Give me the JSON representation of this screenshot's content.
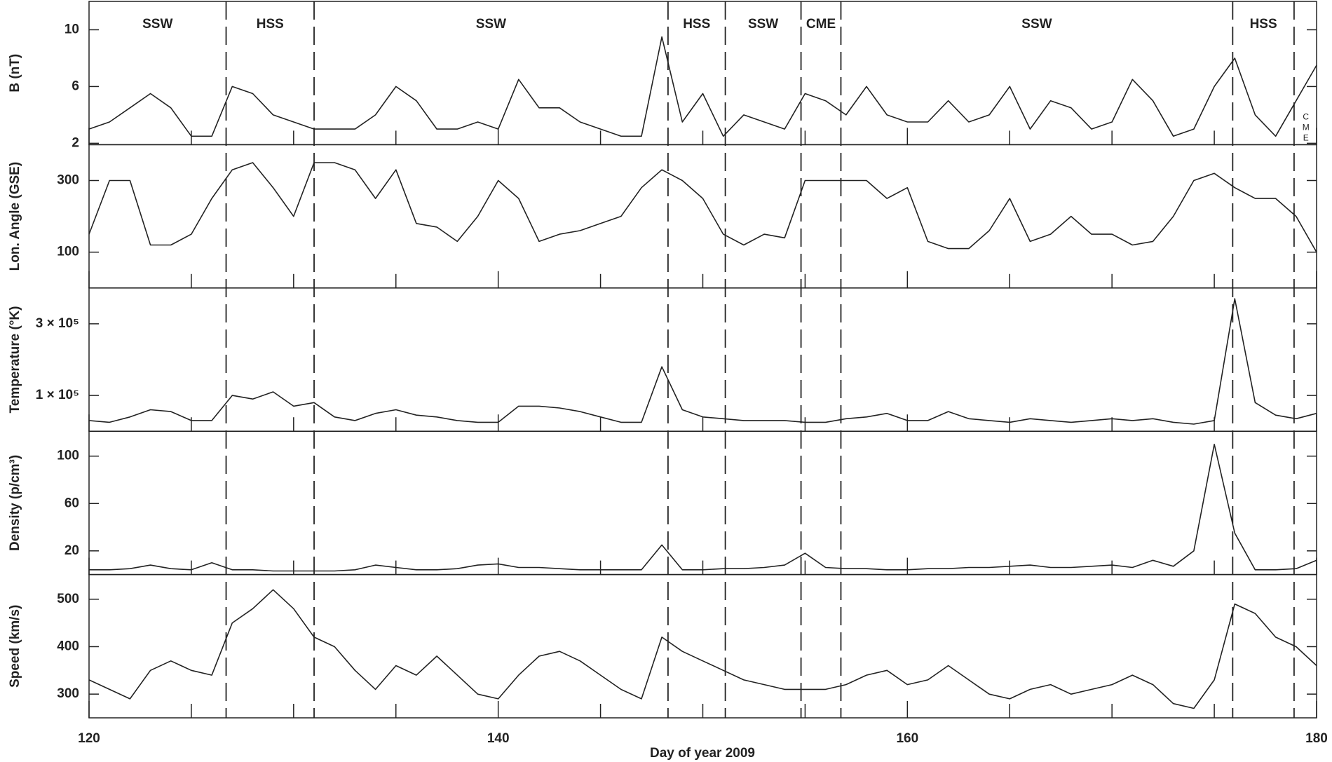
{
  "chart_data": {
    "type": "line",
    "color": "#222222",
    "xlabel": "Day of year 2009",
    "xlim": [
      120,
      180
    ],
    "xticks": [
      120,
      140,
      160,
      180
    ],
    "x_minor_ticks": [
      125,
      130,
      135,
      145,
      150,
      155,
      165,
      170,
      175
    ],
    "boundaries": [
      126.7,
      131,
      148.3,
      151.1,
      154.8,
      156.75,
      175.9,
      178.9
    ],
    "regions": [
      "SSW",
      "HSS",
      "SSW",
      "HSS",
      "SSW",
      "CME",
      "SSW",
      "HSS",
      "CME"
    ],
    "x": [
      120,
      121,
      122,
      123,
      124,
      125,
      126,
      127,
      128,
      129,
      130,
      131,
      132,
      133,
      134,
      135,
      136,
      137,
      138,
      139,
      140,
      141,
      142,
      143,
      144,
      145,
      146,
      147,
      148,
      149,
      150,
      151,
      152,
      153,
      154,
      155,
      156,
      157,
      158,
      159,
      160,
      161,
      162,
      163,
      164,
      165,
      166,
      167,
      168,
      169,
      170,
      171,
      172,
      173,
      174,
      175,
      176,
      177,
      178,
      179,
      180
    ],
    "series": [
      {
        "name": "B (nT)",
        "ylim": [
          1.9,
          12
        ],
        "yticks": [
          2,
          6,
          10
        ],
        "values": [
          3,
          3.5,
          4.5,
          5.5,
          4.5,
          2.5,
          2.5,
          6,
          5.5,
          4,
          3.5,
          3,
          3,
          3,
          4,
          6,
          5,
          3,
          3,
          3.5,
          3,
          6.5,
          4.5,
          4.5,
          3.5,
          3,
          2.5,
          2.5,
          9.5,
          3.5,
          5.5,
          2.5,
          4,
          3.5,
          3,
          5.5,
          5,
          4,
          6,
          4,
          3.5,
          3.5,
          5,
          3.5,
          4,
          6,
          3,
          5,
          4.5,
          3,
          3.5,
          6.5,
          5,
          2.5,
          3,
          6,
          8,
          4,
          2.5,
          5,
          7.5
        ]
      },
      {
        "name": "Lon. Angle (GSE)",
        "ylim": [
          0,
          400
        ],
        "yticks": [
          100,
          300
        ],
        "values": [
          150,
          300,
          300,
          120,
          120,
          150,
          250,
          330,
          350,
          280,
          200,
          350,
          350,
          330,
          250,
          330,
          180,
          170,
          130,
          200,
          300,
          250,
          130,
          150,
          160,
          180,
          200,
          280,
          330,
          300,
          250,
          150,
          120,
          150,
          140,
          300,
          300,
          300,
          300,
          250,
          280,
          130,
          110,
          110,
          160,
          250,
          130,
          150,
          200,
          150,
          150,
          120,
          130,
          200,
          300,
          320,
          280,
          250,
          250,
          200,
          100
        ]
      },
      {
        "name": "Temperature (°K)",
        "ylim": [
          0,
          400000
        ],
        "yticks": [
          {
            "value": 100000,
            "label": "1 × 10⁵"
          },
          {
            "value": 300000,
            "label": "3 × 10⁵"
          }
        ],
        "values": [
          30000,
          25000,
          40000,
          60000,
          55000,
          30000,
          30000,
          100000,
          90000,
          110000,
          70000,
          80000,
          40000,
          30000,
          50000,
          60000,
          45000,
          40000,
          30000,
          25000,
          25000,
          70000,
          70000,
          65000,
          55000,
          40000,
          25000,
          25000,
          180000,
          60000,
          40000,
          35000,
          30000,
          30000,
          30000,
          25000,
          25000,
          35000,
          40000,
          50000,
          30000,
          30000,
          55000,
          35000,
          30000,
          25000,
          35000,
          30000,
          25000,
          30000,
          35000,
          30000,
          35000,
          25000,
          20000,
          30000,
          370000,
          80000,
          45000,
          35000,
          50000
        ]
      },
      {
        "name": "Density (p/cm³)",
        "ylim": [
          0,
          121
        ],
        "yticks": [
          20,
          60,
          100
        ],
        "values": [
          4,
          4,
          5,
          8,
          5,
          4,
          10,
          4,
          4,
          3,
          3,
          3,
          3,
          4,
          8,
          6,
          4,
          4,
          5,
          8,
          9,
          6,
          6,
          5,
          4,
          4,
          4,
          4,
          25,
          4,
          4,
          5,
          5,
          6,
          8,
          18,
          6,
          5,
          5,
          4,
          4,
          5,
          5,
          6,
          6,
          7,
          8,
          6,
          6,
          7,
          8,
          6,
          12,
          7,
          20,
          110,
          35,
          4,
          4,
          5,
          12
        ]
      },
      {
        "name": "Speed (km/s)",
        "ylim": [
          250,
          552
        ],
        "yticks": [
          300,
          400,
          500
        ],
        "values": [
          330,
          310,
          290,
          350,
          370,
          350,
          340,
          450,
          480,
          520,
          480,
          420,
          400,
          350,
          310,
          360,
          340,
          380,
          340,
          300,
          290,
          340,
          380,
          390,
          370,
          340,
          310,
          290,
          420,
          390,
          370,
          350,
          330,
          320,
          310,
          310,
          310,
          320,
          340,
          350,
          320,
          330,
          360,
          330,
          300,
          290,
          310,
          320,
          300,
          310,
          320,
          340,
          320,
          280,
          270,
          330,
          490,
          470,
          420,
          400,
          360
        ]
      }
    ]
  }
}
